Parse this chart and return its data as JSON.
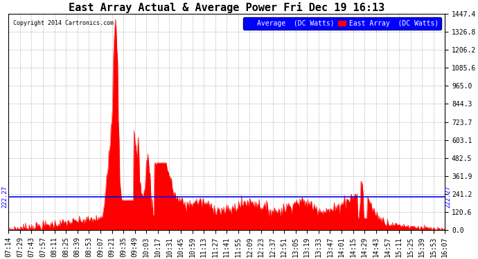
{
  "title": "East Array Actual & Average Power Fri Dec 19 16:13",
  "copyright": "Copyright 2014 Cartronics.com",
  "legend_labels": [
    "Average  (DC Watts)",
    "East Array  (DC Watts)"
  ],
  "legend_colors": [
    "blue",
    "red"
  ],
  "ymin": 0.0,
  "ymax": 1447.4,
  "yticks": [
    0.0,
    120.6,
    241.2,
    361.9,
    482.5,
    603.1,
    723.7,
    844.3,
    965.0,
    1085.6,
    1206.2,
    1326.8,
    1447.4
  ],
  "average_line": 222.27,
  "avg_line_label": "222.27",
  "background_color": "#ffffff",
  "plot_bg_color": "#ffffff",
  "grid_color": "#aaaaaa",
  "title_fontsize": 11,
  "tick_fontsize": 7,
  "x_tick_labels": [
    "07:14",
    "07:29",
    "07:43",
    "07:57",
    "08:11",
    "08:25",
    "08:39",
    "08:53",
    "09:07",
    "09:21",
    "09:35",
    "09:49",
    "10:03",
    "10:17",
    "10:31",
    "10:45",
    "10:59",
    "11:13",
    "11:27",
    "11:41",
    "11:55",
    "12:09",
    "12:23",
    "12:37",
    "12:51",
    "13:05",
    "13:19",
    "13:33",
    "13:47",
    "14:01",
    "14:15",
    "14:29",
    "14:43",
    "14:57",
    "15:11",
    "15:25",
    "15:39",
    "15:53",
    "16:07"
  ]
}
